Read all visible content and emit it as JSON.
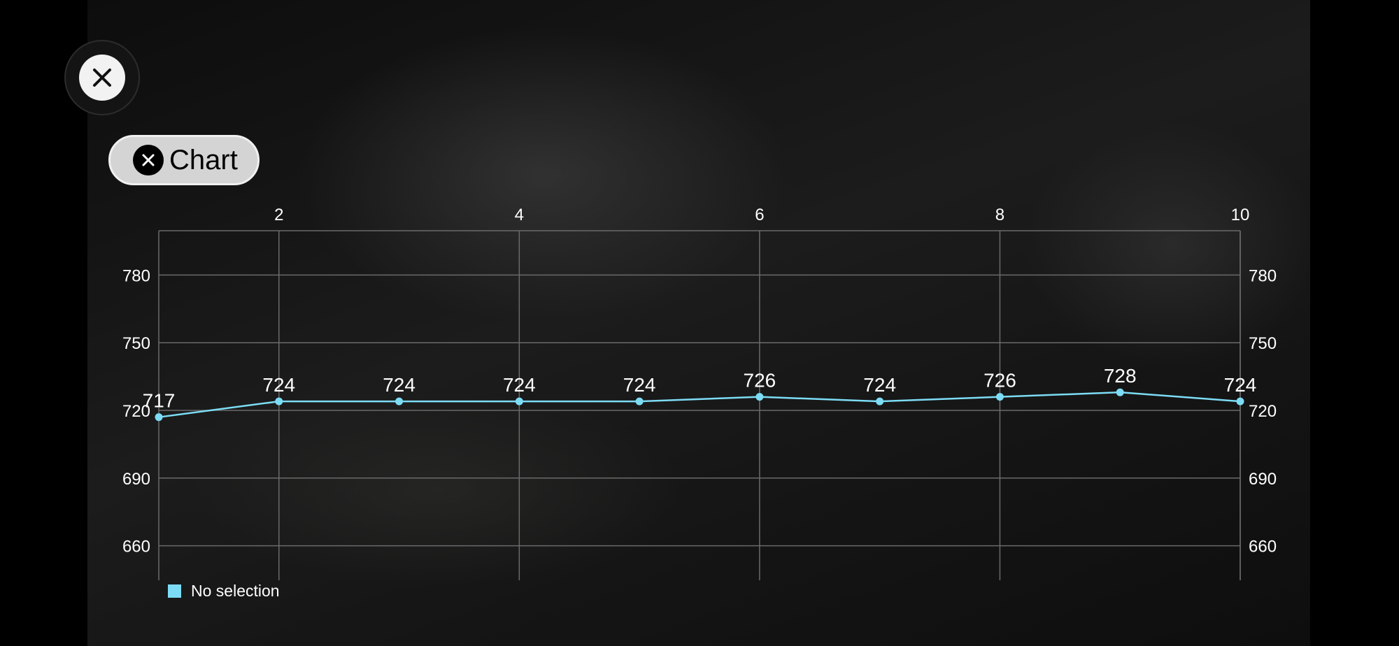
{
  "controls": {
    "close_icon": "close-icon",
    "chart_pill_label": "Chart"
  },
  "chart_data": {
    "type": "line",
    "x": [
      1,
      2,
      3,
      4,
      5,
      6,
      7,
      8,
      9,
      10
    ],
    "series": [
      {
        "name": "No selection",
        "values": [
          717,
          724,
          724,
          724,
          724,
          726,
          724,
          726,
          728,
          724
        ],
        "color": "#7ddcf5"
      }
    ],
    "x_ticks": [
      2,
      4,
      6,
      8,
      10
    ],
    "y_ticks": [
      660,
      690,
      720,
      750,
      780
    ],
    "xlim": [
      1,
      10
    ],
    "ylim": [
      649,
      800
    ],
    "x_axis_position": "top",
    "y_axis_position": "both",
    "grid": true,
    "data_labels": true,
    "legend": {
      "placement": "bottom-left",
      "entries": [
        "No selection"
      ]
    }
  }
}
